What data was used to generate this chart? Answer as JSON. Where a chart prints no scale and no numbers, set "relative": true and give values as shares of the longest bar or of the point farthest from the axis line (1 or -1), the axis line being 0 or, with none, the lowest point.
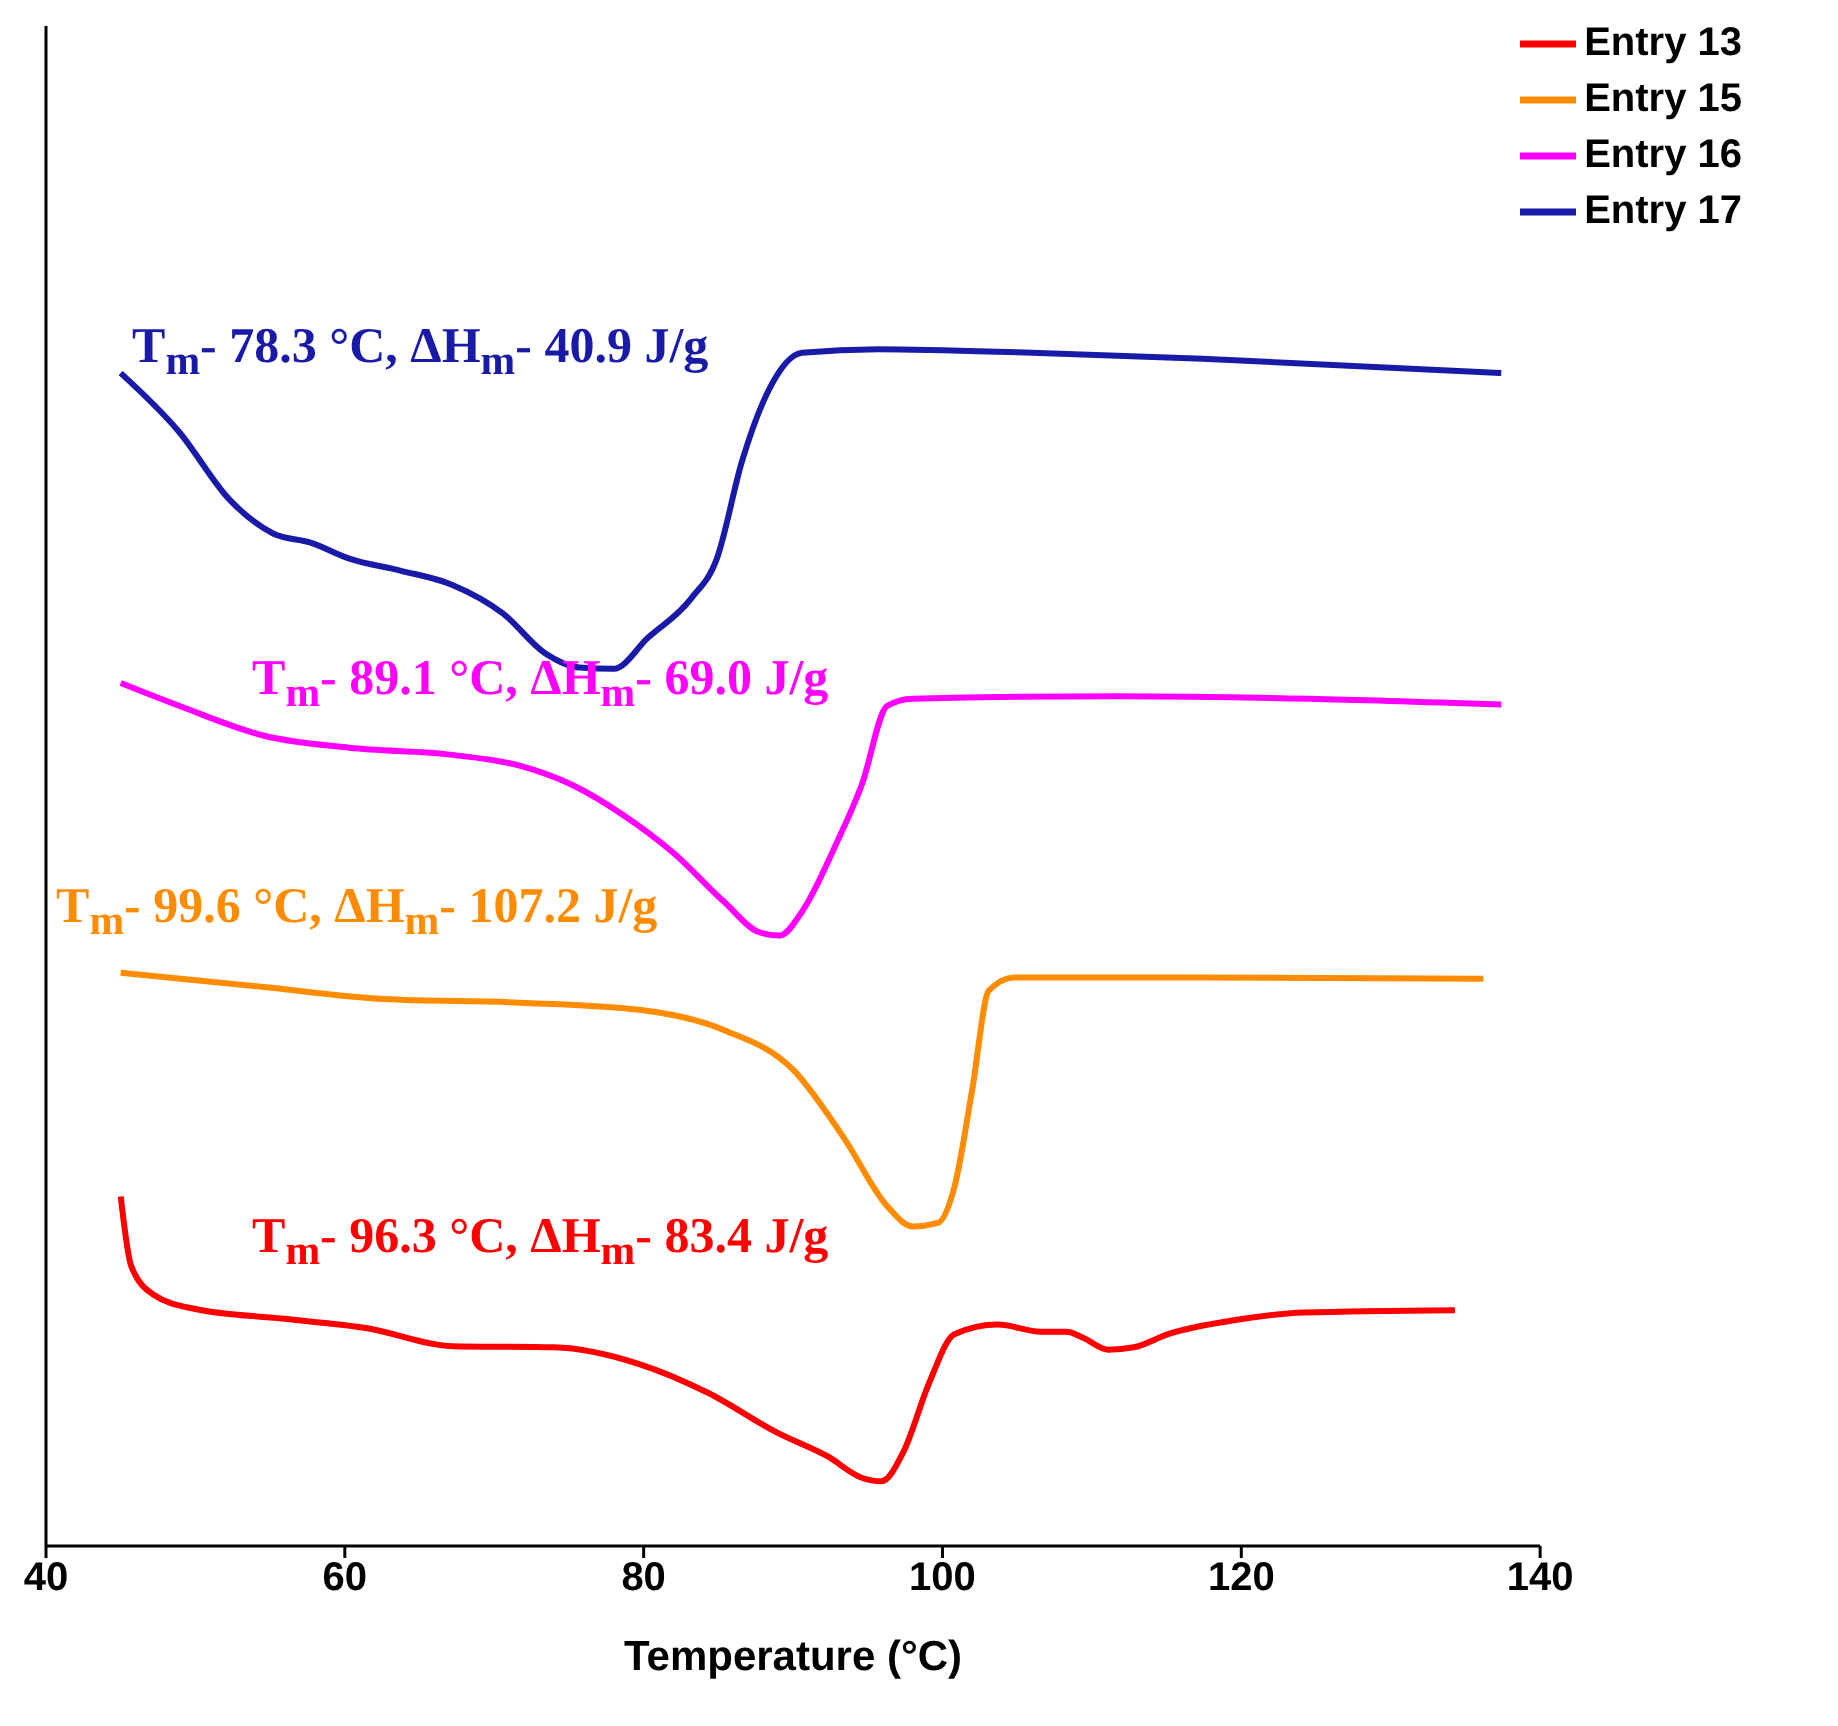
{
  "chart_data": {
    "type": "line",
    "relative": true,
    "xlabel": "Temperature (°C)",
    "xlim": [
      40,
      140
    ],
    "xticks": [
      40,
      60,
      80,
      100,
      120,
      140
    ],
    "grid": false,
    "legend": "top right",
    "marker": "none",
    "line_style": "solid",
    "annotations": [
      "T$_{m}$- 78.3 °C, ΔH$_{m}$- 40.9 J/g",
      "T$_{m}$- 89.1 °C, ΔH$_{m}$- 69.0 J/g",
      "T$_{m}$- 99.6 °C, ΔH$_{m}$- 107.2 J/g",
      "T$_{m}$- 96.3 °C, ΔH$_{m}$- 83.4 J/g"
    ],
    "series": [
      {
        "name": "Entry 13",
        "color": "#ff0000",
        "x": [
          45.0,
          45.7,
          47.2,
          50.0,
          55.8,
          61.5,
          67.2,
          74.0,
          79.7,
          84.3,
          88.9,
          92.3,
          94.6,
          95.9,
          97.4,
          99.1,
          100.8,
          103.7,
          106.6,
          108.3,
          109.4,
          111.1,
          112.8,
          115.1,
          119.7,
          124.2,
          134.3
        ],
        "values": [
          0.292,
          0.234,
          0.21,
          0.198,
          0.19,
          0.182,
          0.167,
          0.166,
          0.152,
          0.128,
          0.095,
          0.075,
          0.057,
          0.054,
          0.079,
          0.136,
          0.177,
          0.185,
          0.179,
          0.179,
          0.174,
          0.164,
          0.166,
          0.177,
          0.189,
          0.195,
          0.197
        ]
      },
      {
        "name": "Entry 15",
        "color": "#ff8c00",
        "x": [
          45.0,
          54.6,
          62.6,
          71.7,
          79.7,
          85.4,
          90.0,
          93.4,
          96.3,
          98.0,
          99.7,
          100.8,
          102.0,
          103.1,
          104.8,
          117.4,
          136.2
        ],
        "values": [
          0.479,
          0.467,
          0.457,
          0.454,
          0.448,
          0.431,
          0.398,
          0.341,
          0.284,
          0.267,
          0.27,
          0.3,
          0.382,
          0.464,
          0.475,
          0.475,
          0.474
        ]
      },
      {
        "name": "Entry 16",
        "color": "#ff00ff",
        "x": [
          45.0,
          48.9,
          54.6,
          60.3,
          67.2,
          71.7,
          75.2,
          78.6,
          82.0,
          85.4,
          87.7,
          89.1,
          90.6,
          92.9,
          94.6,
          96.3,
          98.0,
          111.7,
          137.4
        ],
        "values": [
          0.721,
          0.702,
          0.677,
          0.667,
          0.661,
          0.652,
          0.636,
          0.611,
          0.579,
          0.538,
          0.513,
          0.51,
          0.53,
          0.587,
          0.636,
          0.702,
          0.708,
          0.71,
          0.703
        ]
      },
      {
        "name": "Entry 17",
        "color": "#1a1aa8",
        "x": [
          45.0,
          48.9,
          52.3,
          55.2,
          57.8,
          60.3,
          63.7,
          67.2,
          70.6,
          73.4,
          75.7,
          78.0,
          80.3,
          83.2,
          84.9,
          86.6,
          88.3,
          90.6,
          95.7,
          106.0,
          117.4,
          137.4
        ],
        "values": [
          0.98,
          0.931,
          0.874,
          0.846,
          0.838,
          0.825,
          0.815,
          0.803,
          0.779,
          0.746,
          0.734,
          0.733,
          0.759,
          0.792,
          0.825,
          0.907,
          0.964,
          0.997,
          1.0,
          0.997,
          0.992,
          0.98
        ]
      }
    ]
  }
}
